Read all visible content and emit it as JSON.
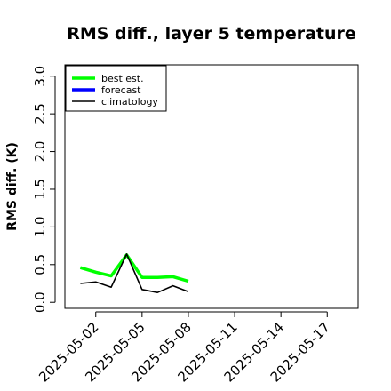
{
  "chart_data": {
    "type": "line",
    "title": "RMS diff., layer 5 temperature",
    "xlabel": "",
    "ylabel": "RMS diff. (K)",
    "xlim": [
      "2025-04-30",
      "2025-05-19"
    ],
    "ylim": [
      -0.08,
      3.15
    ],
    "yticks": [
      0.0,
      0.5,
      1.0,
      1.5,
      2.0,
      2.5,
      3.0
    ],
    "ytick_labels": [
      "0.0",
      "0.5",
      "1.0",
      "1.5",
      "2.0",
      "2.5",
      "3.0"
    ],
    "xticks": [
      "2025-05-02",
      "2025-05-05",
      "2025-05-08",
      "2025-05-11",
      "2025-05-14",
      "2025-05-17"
    ],
    "xtick_labels": [
      "2025-05-02",
      "2025-05-05",
      "2025-05-08",
      "2025-05-11",
      "2025-05-14",
      "2025-05-17"
    ],
    "highlight_tick": "2025-05-08",
    "highlight_color": "#228B22",
    "grid": false,
    "legend_position": "top-left",
    "series": [
      {
        "name": "best est.",
        "color": "#00ff00",
        "x": [
          "2025-05-01",
          "2025-05-02",
          "2025-05-03",
          "2025-05-04",
          "2025-05-05",
          "2025-05-06",
          "2025-05-07",
          "2025-05-08"
        ],
        "values": [
          0.46,
          0.4,
          0.35,
          0.63,
          0.33,
          0.33,
          0.34,
          0.28
        ]
      },
      {
        "name": "forecast",
        "color": "#0000ff",
        "x": [],
        "values": []
      },
      {
        "name": "climatology",
        "color": "#000000",
        "x": [
          "2025-05-01",
          "2025-05-02",
          "2025-05-03",
          "2025-05-04",
          "2025-05-05",
          "2025-05-06",
          "2025-05-07",
          "2025-05-08"
        ],
        "values": [
          0.25,
          0.27,
          0.2,
          0.64,
          0.17,
          0.13,
          0.22,
          0.14
        ]
      }
    ]
  }
}
